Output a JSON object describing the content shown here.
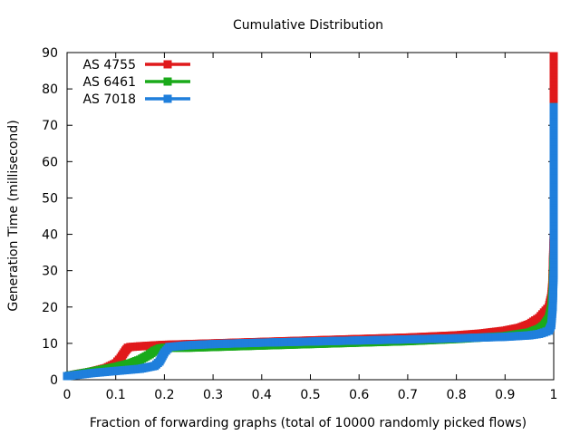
{
  "chart_data": {
    "type": "line",
    "title": "Cumulative Distribution",
    "xlabel": "Fraction of forwarding graphs (total of 10000 randomly picked flows)",
    "ylabel": "Generation Time (millisecond)",
    "xlim": [
      0,
      1
    ],
    "ylim": [
      0,
      90
    ],
    "xticks": [
      0,
      0.1,
      0.2,
      0.3,
      0.4,
      0.5,
      0.6,
      0.7,
      0.8,
      0.9,
      1
    ],
    "xtick_labels": [
      "0",
      "0.1",
      "0.2",
      "0.3",
      "0.4",
      "0.5",
      "0.6",
      "0.7",
      "0.8",
      "0.9",
      "1"
    ],
    "yticks": [
      0,
      10,
      20,
      30,
      40,
      50,
      60,
      70,
      80,
      90
    ],
    "ytick_labels": [
      "0",
      "10",
      "20",
      "30",
      "40",
      "50",
      "60",
      "70",
      "80",
      "90"
    ],
    "grid": false,
    "legend_position": "top-left",
    "series": [
      {
        "name": "AS 4755",
        "color": "#e0191b",
        "x": [
          0,
          0.02,
          0.05,
          0.08,
          0.1,
          0.11,
          0.12,
          0.125,
          0.13,
          0.15,
          0.2,
          0.3,
          0.4,
          0.5,
          0.6,
          0.7,
          0.8,
          0.85,
          0.9,
          0.93,
          0.95,
          0.97,
          0.98,
          0.99,
          0.995,
          0.997,
          0.998,
          0.999,
          1,
          1,
          1,
          1,
          1,
          1,
          1,
          1,
          1,
          1
        ],
        "y": [
          1,
          1.5,
          2.2,
          3.2,
          4.5,
          6,
          8,
          8.8,
          9,
          9.2,
          9.6,
          10,
          10.4,
          10.8,
          11.2,
          11.6,
          12.2,
          12.7,
          13.5,
          14.3,
          15.3,
          17,
          18.5,
          20,
          23,
          26,
          30,
          35,
          40,
          45,
          50,
          55,
          60,
          65,
          70,
          75,
          84,
          89
        ]
      },
      {
        "name": "AS 6461",
        "color": "#1aaa1a",
        "x": [
          0,
          0.05,
          0.1,
          0.13,
          0.15,
          0.17,
          0.18,
          0.19,
          0.2,
          0.25,
          0.3,
          0.4,
          0.5,
          0.6,
          0.7,
          0.8,
          0.9,
          0.95,
          0.97,
          0.98,
          0.99,
          0.995,
          0.998,
          0.999,
          1,
          1,
          1,
          1,
          1
        ],
        "y": [
          1,
          2.2,
          3.5,
          4.5,
          5.5,
          7,
          8,
          8.6,
          8.8,
          8.8,
          9,
          9.4,
          9.8,
          10.2,
          10.6,
          11.2,
          12,
          13,
          14,
          15,
          17,
          20,
          25,
          30,
          35,
          42,
          52,
          56,
          75
        ]
      },
      {
        "name": "AS 7018",
        "color": "#1f7fdc",
        "x": [
          0,
          0.05,
          0.1,
          0.15,
          0.18,
          0.19,
          0.2,
          0.21,
          0.25,
          0.3,
          0.4,
          0.5,
          0.6,
          0.7,
          0.8,
          0.9,
          0.95,
          0.97,
          0.98,
          0.99,
          0.995,
          0.998,
          0.999,
          1,
          1,
          1,
          1,
          1
        ],
        "y": [
          1,
          1.8,
          2.4,
          3,
          3.8,
          5,
          7.5,
          9,
          9.5,
          9.8,
          10.2,
          10.5,
          10.8,
          11.1,
          11.4,
          11.8,
          12.2,
          12.6,
          13,
          13.5,
          15,
          20,
          25,
          30,
          35,
          50,
          55,
          75
        ]
      }
    ]
  }
}
